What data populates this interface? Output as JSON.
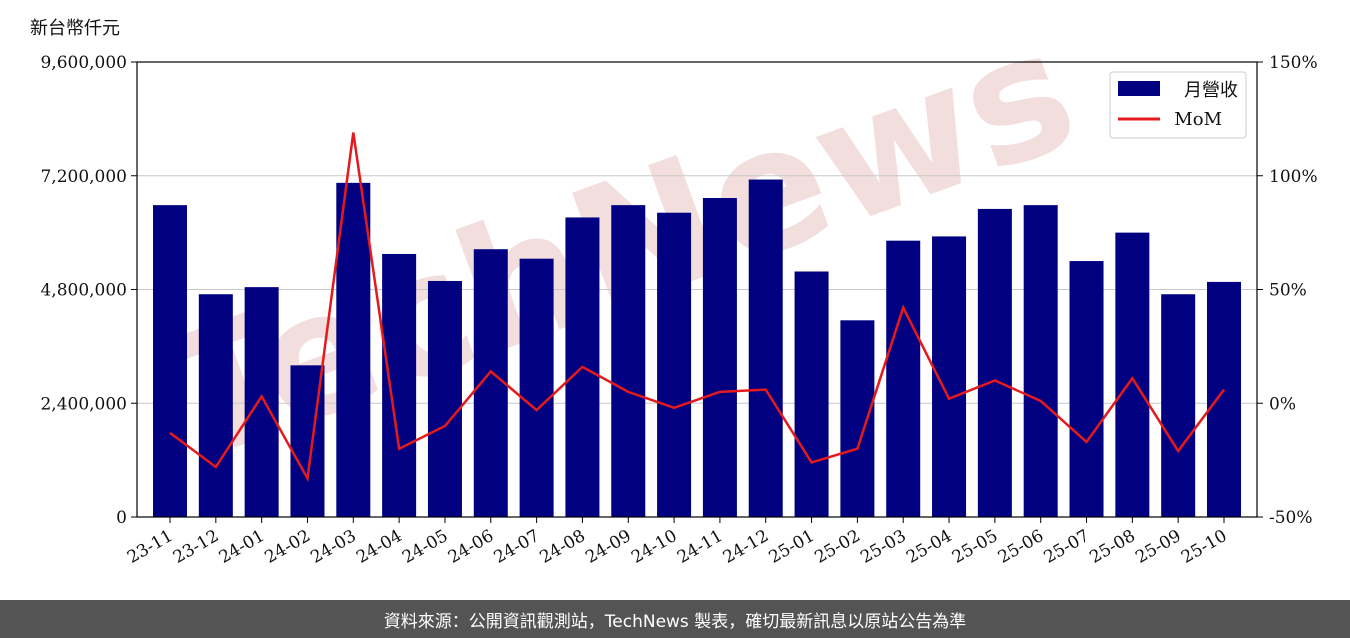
{
  "unit_label": "新台幣仟元",
  "watermark": "TechNews",
  "footer_text": "資料來源：公開資訊觀測站，TechNews 製表，確切最新訊息以原站公告為準",
  "colors": {
    "bar": "#000080",
    "line": "#e41a1c",
    "grid": "#c8c8c8",
    "watermark": "#f3dede",
    "footer_bg": "#545454"
  },
  "chart_data": {
    "type": "bar",
    "categories": [
      "23-11",
      "23-12",
      "24-01",
      "24-02",
      "24-03",
      "24-04",
      "24-05",
      "24-06",
      "24-07",
      "24-08",
      "24-09",
      "24-10",
      "24-11",
      "24-12",
      "25-01",
      "25-02",
      "25-03",
      "25-04",
      "25-05",
      "25-06",
      "25-07",
      "25-08",
      "25-09",
      "25-10"
    ],
    "series": [
      {
        "name": "月營收",
        "type": "bar",
        "axis": "left",
        "values": [
          6580000,
          4700000,
          4850000,
          3200000,
          7050000,
          5550000,
          4980000,
          5650000,
          5450000,
          6320000,
          6580000,
          6420000,
          6730000,
          7120000,
          5180000,
          4150000,
          5830000,
          5920000,
          6500000,
          6580000,
          5400000,
          6000000,
          4700000,
          4960000
        ]
      },
      {
        "name": "MoM",
        "type": "line",
        "axis": "right",
        "unit": "%",
        "values": [
          -13,
          -28,
          3,
          -33,
          119,
          -20,
          -10,
          14,
          -3,
          16,
          5,
          -2,
          5,
          6,
          -26,
          -20,
          42,
          2,
          10,
          1,
          -17,
          11,
          -21,
          6
        ]
      }
    ],
    "left_axis": {
      "ylim": [
        0,
        9600000
      ],
      "ticks": [
        "0",
        "2,400,000",
        "4,800,000",
        "7,200,000",
        "9,600,000"
      ],
      "tick_values": [
        0,
        2400000,
        4800000,
        7200000,
        9600000
      ]
    },
    "right_axis": {
      "ylim": [
        -50,
        150
      ],
      "ticks": [
        "-50%",
        "0%",
        "50%",
        "100%",
        "150%"
      ],
      "tick_values": [
        -50,
        0,
        50,
        100,
        150
      ]
    },
    "grid": true,
    "legend_position": "top-right"
  }
}
